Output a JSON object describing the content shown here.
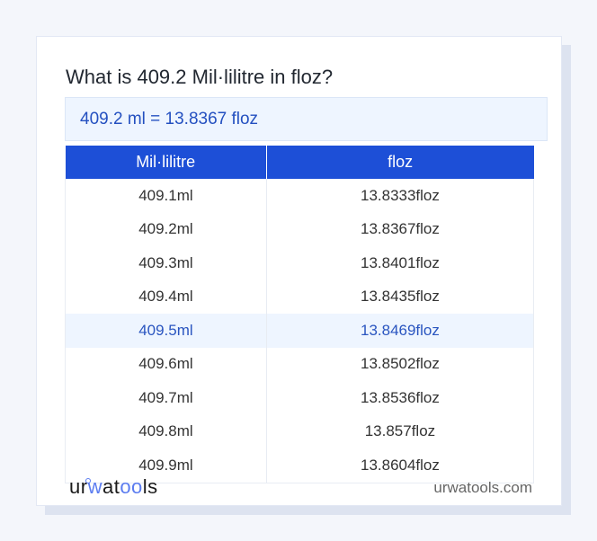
{
  "title": "What is 409.2 Mil·lilitre in floz?",
  "result": "409.2 ml = 13.8367 floz",
  "table": {
    "headers": [
      "Mil·lilitre",
      "floz"
    ],
    "rows": [
      [
        "409.1ml",
        "13.8333floz"
      ],
      [
        "409.2ml",
        "13.8367floz"
      ],
      [
        "409.3ml",
        "13.8401floz"
      ],
      [
        "409.4ml",
        "13.8435floz"
      ],
      [
        "409.5ml",
        "13.8469floz"
      ],
      [
        "409.6ml",
        "13.8502floz"
      ],
      [
        "409.7ml",
        "13.8536floz"
      ],
      [
        "409.8ml",
        "13.857floz"
      ],
      [
        "409.9ml",
        "13.8604floz"
      ]
    ],
    "highlighted_row": 4
  },
  "footer": {
    "logo": "urwatools",
    "site": "urwatools.com"
  },
  "colors": {
    "accent": "#1d4fd7",
    "highlight_bg": "#eef5ff",
    "highlight_text": "#2a55c0"
  }
}
